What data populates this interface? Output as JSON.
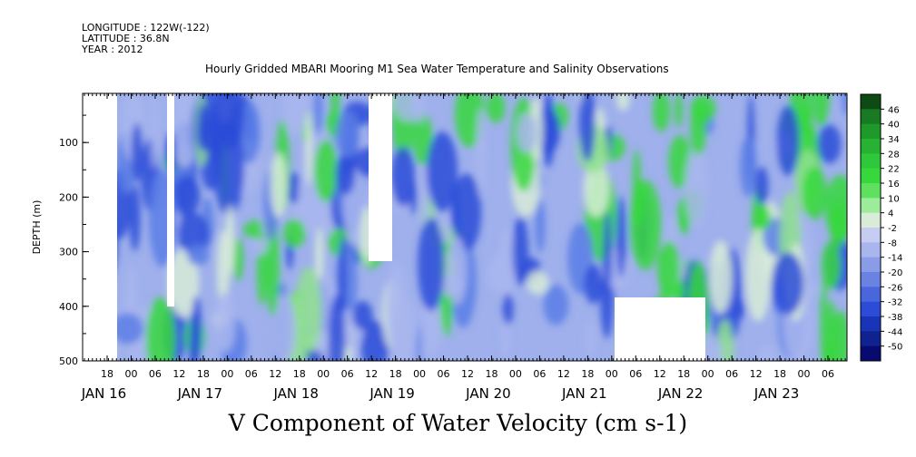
{
  "header": {
    "longitude": "LONGITUDE : 122W(-122)",
    "latitude": "LATITUDE : 36.8N",
    "year": "YEAR : 2012"
  },
  "chart_data": {
    "type": "heatmap",
    "title": "Hourly Gridded MBARI Mooring M1 Sea Water Temperature and Salinity Observations",
    "xlabel": "V Component of Water Velocity (cm s-1)",
    "ylabel": "DEPTH (m)",
    "y_ticks": [
      100,
      200,
      300,
      400,
      500
    ],
    "ylim": [
      500,
      10
    ],
    "x_hour_ticks": [
      "18",
      "00",
      "06",
      "12",
      "18",
      "00",
      "06",
      "12",
      "18",
      "00",
      "06",
      "12",
      "18",
      "00",
      "06",
      "12",
      "18",
      "00",
      "06",
      "12",
      "18",
      "00",
      "06",
      "12",
      "18",
      "00",
      "06",
      "12",
      "18",
      "00",
      "06"
    ],
    "x_day_labels": [
      "JAN 16",
      "JAN 17",
      "JAN 18",
      "JAN 19",
      "JAN 20",
      "JAN 21",
      "JAN 22",
      "JAN 23"
    ],
    "colorbar_labels": [
      "46",
      "40",
      "34",
      "28",
      "22",
      "16",
      "10",
      "4",
      "-2",
      "-8",
      "-14",
      "-20",
      "-26",
      "-32",
      "-38",
      "-44",
      "-50"
    ],
    "colorbar_range": [
      -50,
      52
    ],
    "colors": {
      "strong_negative": "#080a70",
      "negative": "#2c4cd8",
      "weak_negative": "#a9b6ee",
      "near_zero": "#d8ecd8",
      "positive": "#36d83c",
      "strong_positive": "#0e4a14"
    }
  }
}
